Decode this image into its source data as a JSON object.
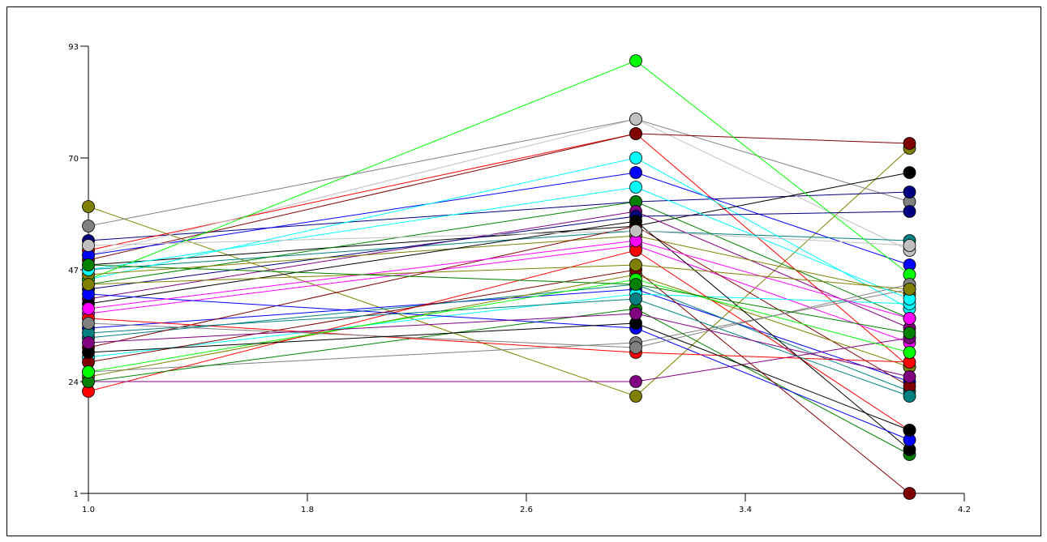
{
  "chart_data": {
    "type": "line",
    "title": "",
    "xlabel": "",
    "ylabel": "",
    "x": [
      1.0,
      3.0,
      4.0
    ],
    "xlim": [
      1.0,
      4.2
    ],
    "ylim": [
      1,
      93
    ],
    "x_ticks": [
      "1.0",
      "1.8",
      "2.6",
      "3.4",
      "4.2"
    ],
    "y_ticks": [
      "1",
      "24",
      "47",
      "70",
      "93"
    ],
    "grid": false,
    "legend": "none",
    "series": [
      {
        "color": "#808000",
        "values": [
          60,
          21,
          72
        ]
      },
      {
        "color": "#808080",
        "values": [
          56,
          78,
          61
        ]
      },
      {
        "color": "#000080",
        "values": [
          53,
          61,
          63
        ]
      },
      {
        "color": "#ff0000",
        "values": [
          51,
          75,
          27
        ]
      },
      {
        "color": "#c0c0c0",
        "values": [
          50,
          78,
          51
        ]
      },
      {
        "color": "#800000",
        "values": [
          49,
          75,
          73
        ]
      },
      {
        "color": "#0000ff",
        "values": [
          50,
          67,
          48
        ]
      },
      {
        "color": "#008080",
        "values": [
          47,
          55,
          53
        ]
      },
      {
        "color": "#000000",
        "values": [
          48,
          56,
          67
        ]
      },
      {
        "color": "#00ffff",
        "values": [
          45,
          70,
          39
        ]
      },
      {
        "color": "#008000",
        "values": [
          44,
          61,
          37
        ]
      },
      {
        "color": "#00ff00",
        "values": [
          45,
          90,
          46
        ]
      },
      {
        "color": "#800080",
        "values": [
          41,
          59,
          35
        ]
      },
      {
        "color": "#ff00ff",
        "values": [
          38,
          52,
          32
        ]
      },
      {
        "color": "#000080",
        "values": [
          43,
          58,
          59
        ]
      },
      {
        "color": "#808000",
        "values": [
          46,
          54,
          42
        ]
      },
      {
        "color": "#0000ff",
        "values": [
          35,
          43,
          24
        ]
      },
      {
        "color": "#008080",
        "values": [
          33,
          44,
          22
        ]
      },
      {
        "color": "#800000",
        "values": [
          31,
          56,
          23
        ]
      },
      {
        "color": "#00ffff",
        "values": [
          29,
          42,
          40
        ]
      },
      {
        "color": "#808080",
        "values": [
          26,
          32,
          43
        ]
      },
      {
        "color": "#808000",
        "values": [
          25,
          46,
          27
        ]
      },
      {
        "color": "#ff0000",
        "values": [
          22,
          51,
          14
        ]
      },
      {
        "color": "#800080",
        "values": [
          24,
          24,
          33
        ]
      },
      {
        "color": "#008000",
        "values": [
          24,
          39,
          9
        ]
      },
      {
        "color": "#000000",
        "values": [
          40,
          57,
          10
        ]
      },
      {
        "color": "#0000ff",
        "values": [
          42,
          35,
          12
        ]
      },
      {
        "color": "#ff0000",
        "values": [
          37,
          30,
          28
        ]
      },
      {
        "color": "#800000",
        "values": [
          28,
          47,
          1
        ]
      },
      {
        "color": "#008080",
        "values": [
          34,
          41,
          21
        ]
      },
      {
        "color": "#00ff00",
        "values": [
          26,
          45,
          30
        ]
      },
      {
        "color": "#ff00ff",
        "values": [
          39,
          53,
          37
        ]
      },
      {
        "color": "#808080",
        "values": [
          36,
          31,
          44
        ]
      },
      {
        "color": "#000000",
        "values": [
          30,
          36,
          14
        ]
      },
      {
        "color": "#00ffff",
        "values": [
          47,
          64,
          41
        ]
      },
      {
        "color": "#808000",
        "values": [
          44,
          48,
          43
        ]
      },
      {
        "color": "#800080",
        "values": [
          32,
          38,
          25
        ]
      },
      {
        "color": "#c0c0c0",
        "values": [
          52,
          55,
          52
        ]
      },
      {
        "color": "#008000",
        "values": [
          48,
          44,
          34
        ]
      }
    ]
  }
}
